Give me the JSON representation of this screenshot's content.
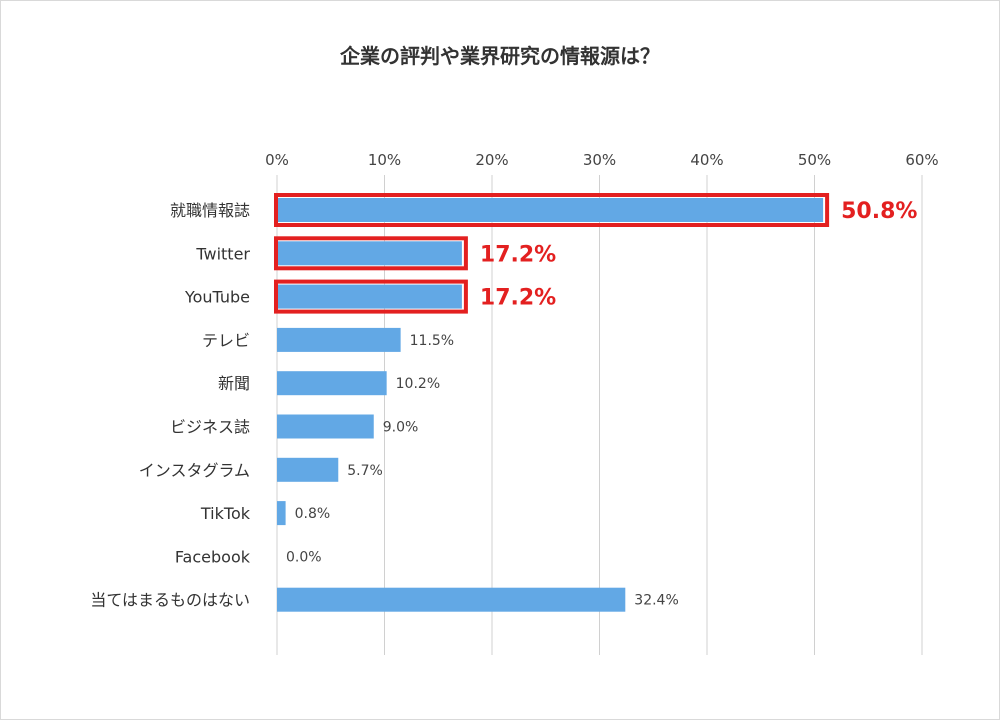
{
  "chart_data": {
    "type": "bar",
    "orientation": "horizontal",
    "title": "企業の評判や業界研究の情報源は？",
    "categories": [
      "就職情報誌",
      "Twitter",
      "YouTube",
      "テレビ",
      "新聞",
      "ビジネス誌",
      "インスタグラム",
      "TikTok",
      "Facebook",
      "当てはまるものはない"
    ],
    "values": [
      50.8,
      17.2,
      17.2,
      11.5,
      10.2,
      9.0,
      5.7,
      0.8,
      0.0,
      32.4
    ],
    "value_labels": [
      "50.8%",
      "17.2%",
      "17.2%",
      "11.5%",
      "10.2%",
      "9.0%",
      "5.7%",
      "0.8%",
      "0.0%",
      "32.4%"
    ],
    "highlighted": [
      true,
      true,
      true,
      false,
      false,
      false,
      false,
      false,
      false,
      false
    ],
    "xlim": [
      0,
      60
    ],
    "xticks": [
      0,
      10,
      20,
      30,
      40,
      50,
      60
    ],
    "xtick_labels": [
      "0%",
      "10%",
      "20%",
      "30%",
      "40%",
      "50%",
      "60%"
    ],
    "x_axis_position": "top",
    "grid": true,
    "colors": {
      "bar": "#62a8e5",
      "highlight": "#e32020",
      "grid": "#d0d0d0"
    }
  }
}
